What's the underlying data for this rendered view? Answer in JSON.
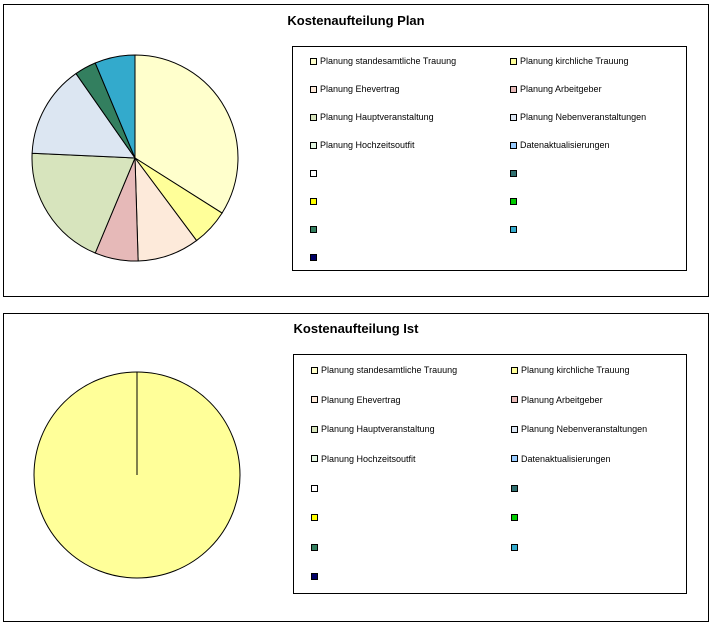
{
  "chart_data": [
    {
      "type": "pie",
      "title": "Kostenaufteilung Plan",
      "categories": [
        "Planung standesamtliche Trauung",
        "Planung kirchliche Trauung",
        "Planung Ehevertrag",
        "Planung Arbeitgeber",
        "Planung Hauptveranstaltung",
        "Planung Nebenveranstaltungen",
        "Planung Hochzeitsoutfit",
        "Datenaktualisierungen",
        "",
        "",
        "",
        "",
        "",
        ""
      ],
      "values": [
        35,
        6,
        10,
        7,
        20,
        15,
        0,
        0,
        0,
        0,
        0,
        0,
        3.5,
        6.5
      ],
      "colors": [
        "#FFFFCC",
        "#FFFF99",
        "#FDEADA",
        "#E6B9B8",
        "#D7E4BD",
        "#DCE6F2",
        "#E2F5E0",
        "#99CCFF",
        "#FFFFFF",
        "#2F6F6F",
        "#FFFF00",
        "#00CC00",
        "#337F5F",
        "#33AACC",
        "#000066"
      ],
      "legend": {
        "placement": "right"
      }
    },
    {
      "type": "pie",
      "title": "Kostenaufteilung Ist",
      "categories": [
        "Planung standesamtliche Trauung",
        "Planung kirchliche Trauung",
        "Planung Ehevertrag",
        "Planung Arbeitgeber",
        "Planung Hauptveranstaltung",
        "Planung Nebenveranstaltungen",
        "Planung Hochzeitsoutfit",
        "Datenaktualisierungen",
        "",
        "",
        "",
        "",
        "",
        ""
      ],
      "values": [
        0,
        100,
        0,
        0,
        0,
        0,
        0,
        0,
        0,
        0,
        0,
        0,
        0,
        0
      ],
      "colors": [
        "#FFFFCC",
        "#FFFF99",
        "#FDEADA",
        "#E6B9B8",
        "#D7E4BD",
        "#DCE6F2",
        "#E2F5E0",
        "#99CCFF",
        "#FFFFFF",
        "#2F6F6F",
        "#FFFF00",
        "#00CC00",
        "#337F5F",
        "#33AACC",
        "#000066"
      ],
      "legend": {
        "placement": "right"
      }
    }
  ]
}
